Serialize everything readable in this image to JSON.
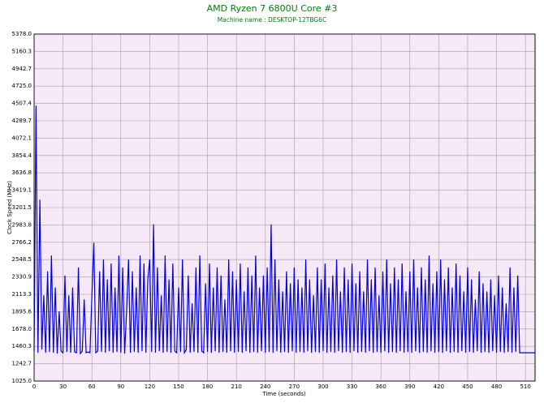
{
  "chart_data": {
    "type": "line",
    "title": "AMD Ryzen 7 6800U Core #3",
    "subtitle": "Machine name : DESKTOP-12TBG6C",
    "title_color": "#008000",
    "x_label": "Time (seconds)",
    "y_label": "Clock Speed (MHz)",
    "color": "#0000dd",
    "background": "#f7e8f7",
    "grid": true,
    "xlim": [
      0,
      520
    ],
    "ylim": [
      1025,
      5378
    ],
    "xticks": [
      0,
      30,
      60,
      90,
      120,
      150,
      180,
      210,
      240,
      270,
      300,
      330,
      360,
      390,
      420,
      450,
      480,
      510
    ],
    "yticks": [
      {
        "value": 1025,
        "label": "1025.0"
      },
      1242.7,
      1460.3,
      {
        "value": 1678,
        "label": "1678.0"
      },
      1895.6,
      2113.3,
      2330.9,
      2548.5,
      2766.2,
      2983.8,
      3201.5,
      3419.1,
      3636.8,
      3854.4,
      4072.1,
      4289.7,
      4507.4,
      {
        "value": 4725,
        "label": "4725.0"
      },
      4942.7,
      5160.3,
      {
        "value": 5378,
        "label": "5378.0"
      }
    ],
    "x": [
      0,
      2,
      4,
      6,
      8,
      10,
      12,
      14,
      16,
      18,
      20,
      22,
      24,
      26,
      28,
      30,
      32,
      34,
      36,
      38,
      40,
      42,
      44,
      46,
      48,
      50,
      52,
      54,
      56,
      58,
      60,
      62,
      64,
      66,
      68,
      70,
      72,
      74,
      76,
      78,
      80,
      82,
      84,
      86,
      88,
      90,
      92,
      94,
      96,
      98,
      100,
      102,
      104,
      106,
      108,
      110,
      112,
      114,
      116,
      118,
      120,
      122,
      124,
      126,
      128,
      130,
      132,
      134,
      136,
      138,
      140,
      142,
      144,
      146,
      148,
      150,
      152,
      154,
      156,
      158,
      160,
      162,
      164,
      166,
      168,
      170,
      172,
      174,
      176,
      178,
      180,
      182,
      184,
      186,
      188,
      190,
      192,
      194,
      196,
      198,
      200,
      202,
      204,
      206,
      208,
      210,
      212,
      214,
      216,
      218,
      220,
      222,
      224,
      226,
      228,
      230,
      232,
      234,
      236,
      238,
      240,
      242,
      244,
      246,
      248,
      250,
      252,
      254,
      256,
      258,
      260,
      262,
      264,
      266,
      268,
      270,
      272,
      274,
      276,
      278,
      280,
      282,
      284,
      286,
      288,
      290,
      292,
      294,
      296,
      298,
      300,
      302,
      304,
      306,
      308,
      310,
      312,
      314,
      316,
      318,
      320,
      322,
      324,
      326,
      328,
      330,
      332,
      334,
      336,
      338,
      340,
      342,
      344,
      346,
      348,
      350,
      352,
      354,
      356,
      358,
      360,
      362,
      364,
      366,
      368,
      370,
      372,
      374,
      376,
      378,
      380,
      382,
      384,
      386,
      388,
      390,
      392,
      394,
      396,
      398,
      400,
      402,
      404,
      406,
      408,
      410,
      412,
      414,
      416,
      418,
      420,
      422,
      424,
      426,
      428,
      430,
      432,
      434,
      436,
      438,
      440,
      442,
      444,
      446,
      448,
      450,
      452,
      454,
      456,
      458,
      460,
      462,
      464,
      466,
      468,
      470,
      472,
      474,
      476,
      478,
      480,
      482,
      484,
      486,
      488,
      490,
      492,
      494,
      496,
      498,
      500,
      502,
      504,
      506,
      508,
      510,
      512,
      514,
      516,
      518,
      520
    ],
    "values": [
      1400,
      4480,
      1380,
      3300,
      1420,
      2100,
      1380,
      2400,
      1390,
      2600,
      1380,
      2200,
      1370,
      1900,
      1400,
      1380,
      2350,
      1390,
      2100,
      1380,
      2200,
      1390,
      1380,
      2450,
      1370,
      1400,
      2050,
      1380,
      1390,
      1380,
      2100,
      2760,
      1380,
      1400,
      2400,
      1390,
      2550,
      1380,
      2300,
      1400,
      2500,
      1380,
      2200,
      1390,
      2600,
      1380,
      2450,
      1370,
      1900,
      2550,
      1380,
      2400,
      1390,
      2200,
      1380,
      2600,
      1400,
      2500,
      1380,
      2300,
      2550,
      1390,
      2990,
      1380,
      2450,
      1400,
      2100,
      1380,
      2600,
      1390,
      2300,
      1380,
      2500,
      1400,
      1380,
      2200,
      1390,
      2550,
      1380,
      1420,
      2350,
      1380,
      2000,
      1390,
      2450,
      1380,
      2600,
      1400,
      1380,
      2250,
      1390,
      2500,
      1380,
      2200,
      1400,
      2450,
      1380,
      2350,
      1390,
      2050,
      1380,
      2550,
      1400,
      2400,
      1380,
      2300,
      1390,
      2500,
      1380,
      2150,
      1400,
      2450,
      1380,
      2350,
      1390,
      2600,
      1380,
      2200,
      1400,
      2350,
      1380,
      2450,
      1390,
      2990,
      1380,
      2550,
      1400,
      2300,
      1380,
      2150,
      1390,
      2400,
      1380,
      2250,
      1400,
      2450,
      1380,
      2300,
      1390,
      2200,
      1380,
      2550,
      1400,
      2300,
      1380,
      2100,
      1390,
      2450,
      1380,
      2300,
      1400,
      2500,
      1380,
      2200,
      1390,
      2350,
      1380,
      2550,
      1400,
      2150,
      1380,
      2450,
      1390,
      2300,
      1380,
      2500,
      1400,
      2250,
      1380,
      2400,
      1390,
      2150,
      1380,
      2550,
      1400,
      2300,
      1380,
      2450,
      1390,
      2100,
      1380,
      2400,
      1400,
      2550,
      1380,
      2250,
      1390,
      2450,
      1380,
      2300,
      1400,
      2500,
      1380,
      2150,
      1390,
      2400,
      1380,
      2550,
      1400,
      2200,
      1380,
      2450,
      1390,
      2300,
      1380,
      2600,
      1400,
      2250,
      1380,
      2400,
      1390,
      2550,
      1380,
      2300,
      1400,
      2450,
      1380,
      2200,
      1390,
      2500,
      1380,
      2350,
      1400,
      2150,
      1380,
      2450,
      1390,
      2300,
      1380,
      2050,
      1400,
      2400,
      1380,
      2250,
      1390,
      2150,
      1380,
      2300,
      1400,
      2100,
      1380,
      2350,
      1390,
      2200,
      1380,
      2000,
      1390,
      2450,
      1380,
      2200,
      1390,
      2350,
      1380,
      1380,
      1380,
      1380,
      1380,
      1380,
      1380,
      1380,
      1380
    ]
  }
}
